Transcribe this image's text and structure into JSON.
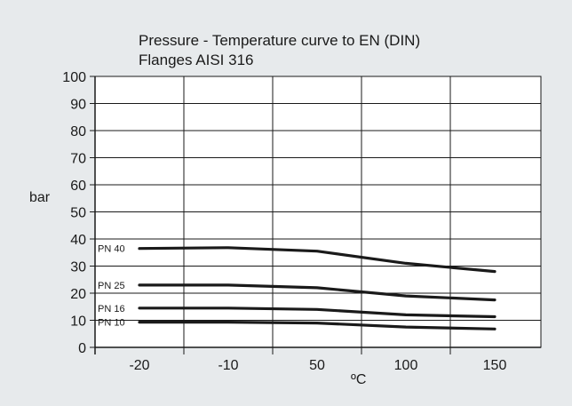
{
  "chart_data": {
    "type": "line",
    "title": "Pressure - Temperature curve to EN (DIN)",
    "subtitle": "Flanges AISI 316",
    "xlabel": "ºC",
    "ylabel": "bar",
    "categories": [
      "-20",
      "-10",
      "50",
      "100",
      "150"
    ],
    "ylim": [
      0,
      100
    ],
    "yticks": [
      0,
      10,
      20,
      30,
      40,
      50,
      60,
      70,
      80,
      90,
      100
    ],
    "grid": true,
    "series": [
      {
        "name": "PN 40",
        "values": [
          36.5,
          36.8,
          35.5,
          31.0,
          28.0
        ]
      },
      {
        "name": "PN 25",
        "values": [
          23.0,
          23.0,
          22.0,
          19.0,
          17.5
        ]
      },
      {
        "name": "PN 16",
        "values": [
          14.5,
          14.5,
          14.0,
          12.0,
          11.3
        ]
      },
      {
        "name": "PN 10",
        "values": [
          9.3,
          9.3,
          9.0,
          7.5,
          6.8
        ]
      }
    ],
    "line_color": "#1a1a1a"
  }
}
